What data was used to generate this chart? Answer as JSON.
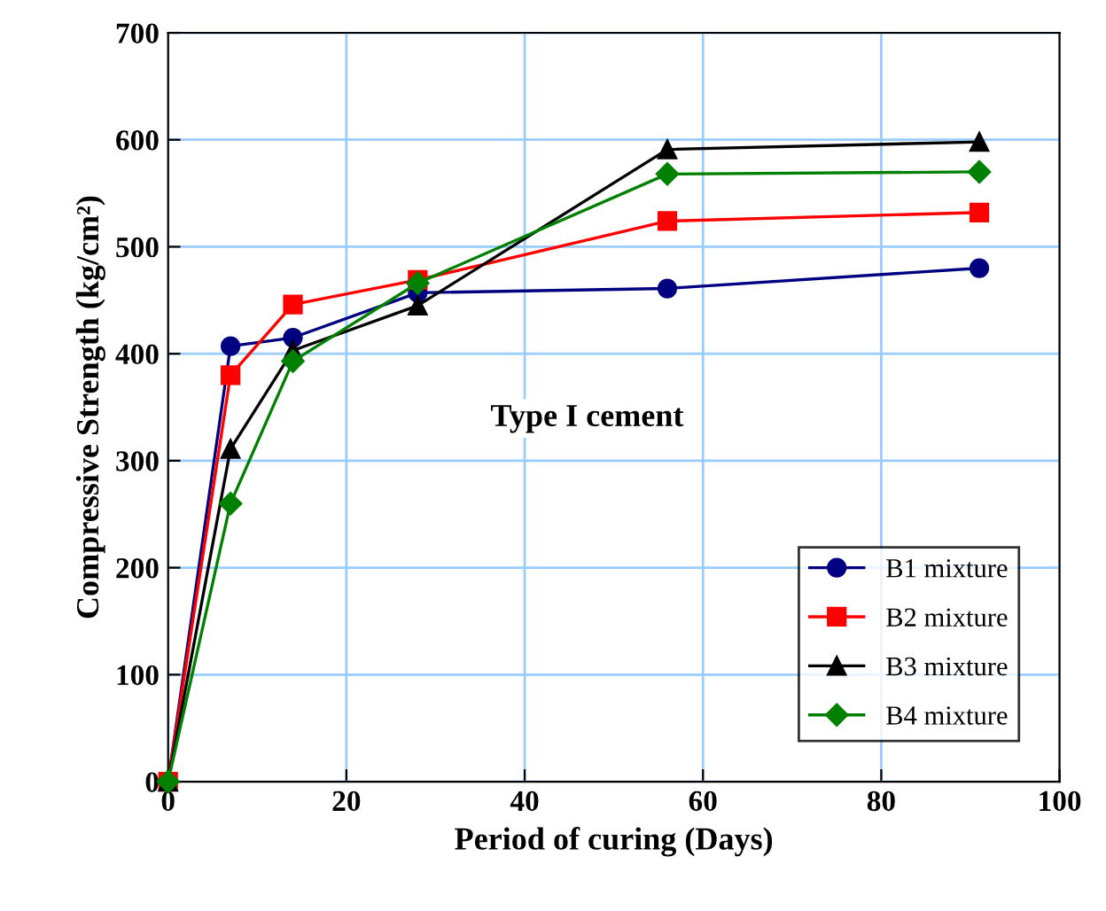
{
  "chart_data": {
    "type": "line",
    "xlabel": "Period of curing (Days)",
    "ylabel": "Compressive Strength (kg/cm²)",
    "x": [
      0,
      7,
      14,
      28,
      56,
      91
    ],
    "series": [
      {
        "name": "B1 mixture",
        "color": "#000080",
        "marker": "circle",
        "values": [
          0,
          407,
          415,
          457,
          461,
          480
        ]
      },
      {
        "name": "B2 mixture",
        "color": "#ff0000",
        "marker": "square",
        "values": [
          0,
          380,
          446,
          469,
          524,
          532
        ]
      },
      {
        "name": "B3 mixture",
        "color": "#000000",
        "marker": "triangle",
        "values": [
          0,
          311,
          403,
          445,
          591,
          598
        ]
      },
      {
        "name": "B4 mixture",
        "color": "#008000",
        "marker": "diamond",
        "values": [
          0,
          260,
          393,
          466,
          568,
          570
        ]
      }
    ],
    "annotations": [
      "Type I cement"
    ],
    "xlim": [
      0,
      100
    ],
    "xticks": [
      0,
      20,
      40,
      60,
      80,
      100
    ],
    "ylim": [
      0,
      700
    ],
    "yticks": [
      0,
      100,
      200,
      300,
      400,
      500,
      600,
      700
    ],
    "grid": true,
    "legend": "bottom right",
    "line_style": "solid"
  }
}
